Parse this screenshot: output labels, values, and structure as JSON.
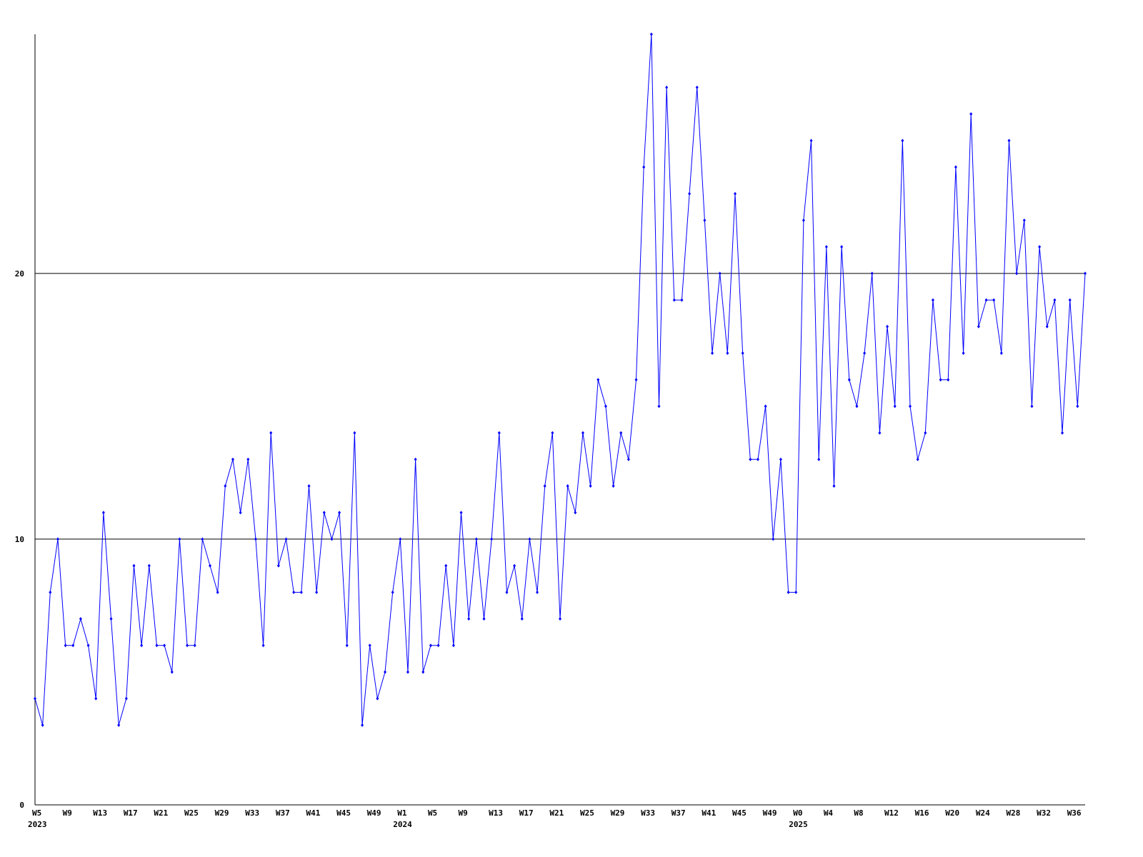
{
  "chart_data": {
    "type": "line",
    "color": "#0000ff",
    "categories": [
      "W5",
      null,
      null,
      null,
      "W9",
      null,
      null,
      null,
      "W13",
      null,
      null,
      null,
      "W17",
      null,
      null,
      null,
      "W21",
      null,
      null,
      null,
      "W25",
      null,
      null,
      null,
      "W29",
      null,
      null,
      null,
      "W33",
      null,
      null,
      null,
      "W37",
      null,
      null,
      null,
      "W41",
      null,
      null,
      null,
      "W45",
      null,
      null,
      null,
      "W49",
      null,
      null,
      null,
      "W1",
      null,
      null,
      null,
      "W5",
      null,
      null,
      null,
      "W9",
      null,
      null,
      null,
      "W13",
      null,
      null,
      null,
      "W17",
      null,
      null,
      null,
      "W21",
      null,
      null,
      null,
      "W25",
      null,
      null,
      null,
      "W29",
      null,
      null,
      null,
      "W33",
      null,
      null,
      null,
      "W37",
      null,
      null,
      null,
      "W41",
      null,
      null,
      null,
      "W45",
      null,
      null,
      null,
      "W49",
      null,
      null,
      null,
      "W0",
      null,
      null,
      null,
      "W4",
      null,
      null,
      null,
      "W8",
      null,
      null,
      null,
      "W12",
      null,
      null,
      null,
      "W16",
      null,
      null,
      null,
      "W20",
      null,
      null,
      null,
      "W24",
      null,
      null,
      null,
      "W28",
      null,
      null,
      null,
      "W32",
      null,
      null,
      null,
      "W36",
      null,
      null
    ],
    "years": [
      "2023",
      null,
      null,
      null,
      null,
      null,
      null,
      null,
      null,
      null,
      null,
      null,
      null,
      null,
      null,
      null,
      null,
      null,
      null,
      null,
      null,
      null,
      null,
      null,
      null,
      null,
      null,
      null,
      null,
      null,
      null,
      null,
      null,
      null,
      null,
      null,
      null,
      null,
      null,
      null,
      null,
      null,
      null,
      null,
      null,
      null,
      null,
      null,
      "2024",
      null,
      null,
      null,
      null,
      null,
      null,
      null,
      null,
      null,
      null,
      null,
      null,
      null,
      null,
      null,
      null,
      null,
      null,
      null,
      null,
      null,
      null,
      null,
      null,
      null,
      null,
      null,
      null,
      null,
      null,
      null,
      null,
      null,
      null,
      null,
      null,
      null,
      null,
      null,
      null,
      null,
      null,
      null,
      null,
      null,
      null,
      null,
      null,
      null,
      null,
      null,
      "2025",
      null,
      null,
      null,
      null,
      null,
      null,
      null,
      null,
      null,
      null,
      null,
      null,
      null,
      null,
      null,
      null,
      null,
      null,
      null,
      null,
      null,
      null,
      null,
      null,
      null,
      null,
      null,
      null,
      null,
      null,
      null,
      null,
      null,
      null,
      null,
      null,
      null,
      null
    ],
    "values": [
      4,
      3,
      8,
      10,
      6,
      6,
      7,
      6,
      4,
      11,
      7,
      3,
      4,
      9,
      6,
      9,
      6,
      6,
      5,
      10,
      6,
      6,
      10,
      9,
      8,
      12,
      13,
      11,
      13,
      10,
      6,
      14,
      9,
      10,
      8,
      8,
      12,
      8,
      11,
      10,
      11,
      6,
      14,
      3,
      6,
      4,
      5,
      8,
      10,
      5,
      13,
      5,
      6,
      6,
      9,
      6,
      11,
      7,
      10,
      7,
      10,
      14,
      8,
      9,
      7,
      10,
      8,
      12,
      14,
      7,
      12,
      11,
      14,
      12,
      16,
      15,
      12,
      14,
      13,
      16,
      24,
      29,
      15,
      27,
      19,
      19,
      23,
      27,
      22,
      17,
      20,
      17,
      23,
      17,
      13,
      13,
      15,
      10,
      13,
      8,
      8,
      22,
      25,
      13,
      21,
      12,
      21,
      16,
      15,
      17,
      20,
      14,
      18,
      15,
      25,
      15,
      13,
      14,
      19,
      16,
      16,
      24,
      17,
      26,
      18,
      19,
      19,
      17,
      25,
      20,
      22,
      15,
      21,
      18,
      19,
      14,
      19,
      15,
      20
    ],
    "ylim": [
      0,
      29
    ],
    "yticks": [
      0,
      10,
      20
    ],
    "grid": true
  }
}
